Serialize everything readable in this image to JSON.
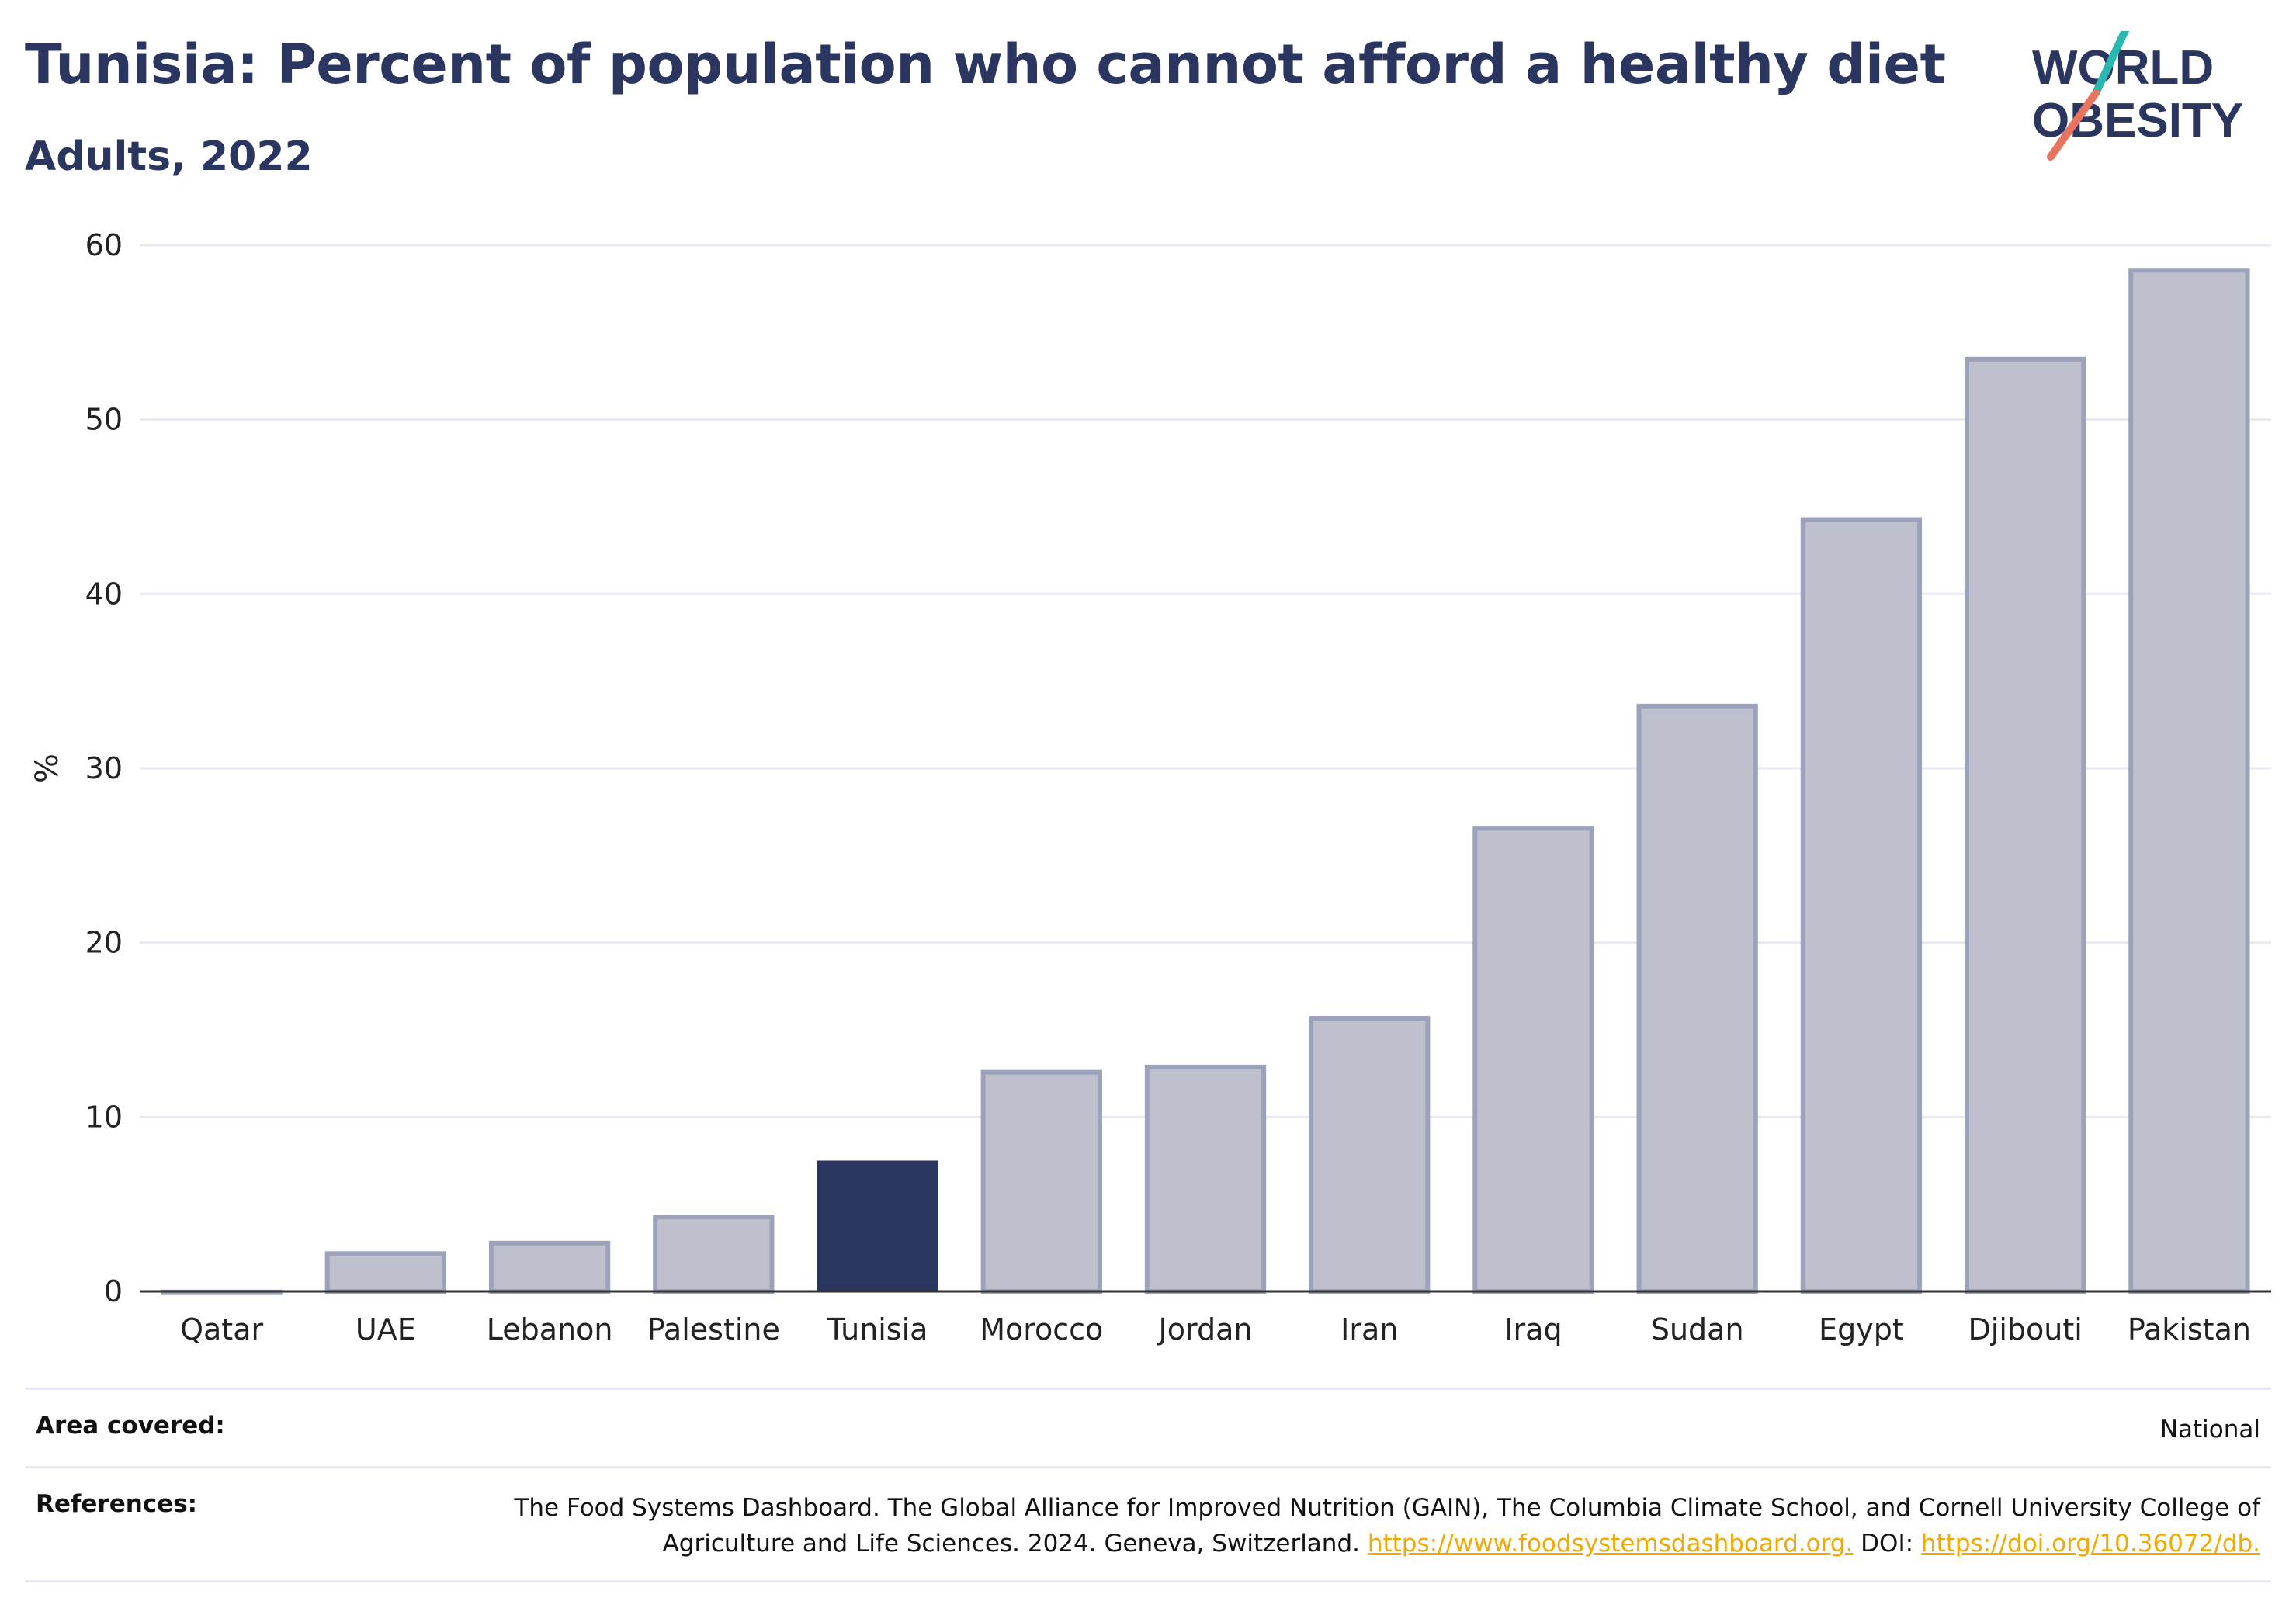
{
  "header": {
    "title": "Tunisia: Percent of population who cannot afford a healthy diet",
    "subtitle": "Adults, 2022"
  },
  "logo": {
    "line1": "WORLD",
    "line2": "OBESITY",
    "colors": {
      "text": "#2a3560",
      "slash_teal": "#2bb8b0",
      "slash_coral": "#e8735f"
    }
  },
  "chart_data": {
    "type": "bar",
    "title": "Tunisia: Percent of population who cannot afford a healthy diet",
    "subtitle": "Adults, 2022",
    "ylabel": "%",
    "xlabel": "",
    "ylim": [
      0,
      60
    ],
    "yticks": [
      0,
      10,
      20,
      30,
      40,
      50,
      60
    ],
    "grid": true,
    "categories": [
      "Qatar",
      "UAE",
      "Lebanon",
      "Palestine",
      "Tunisia",
      "Morocco",
      "Jordan",
      "Iran",
      "Iraq",
      "Sudan",
      "Egypt",
      "Djibouti",
      "Pakistan"
    ],
    "values": [
      0.1,
      2.3,
      2.9,
      4.4,
      7.5,
      12.7,
      13.0,
      15.8,
      26.7,
      33.7,
      44.4,
      53.6,
      58.7
    ],
    "highlight": "Tunisia",
    "colors": {
      "highlight": "#2a3560",
      "bar_fill": "#bec1cd",
      "bar_stroke": "#9ca2ba",
      "grid": "#e8e9f1",
      "axis": "#333333"
    }
  },
  "footer": {
    "area_label": "Area covered:",
    "area_value": "National",
    "refs_label": "References:",
    "refs_text1": "The Food Systems Dashboard. The Global Alliance for Improved Nutrition (GAIN), The Columbia Climate School, and Cornell University College of Agriculture and Life Sciences. 2024. Geneva, Switzerland. ",
    "refs_link1": "https://www.foodsystemsdashboard.org.",
    "refs_text2": " DOI: ",
    "refs_link2": "https://doi.org/10.36072/db."
  }
}
